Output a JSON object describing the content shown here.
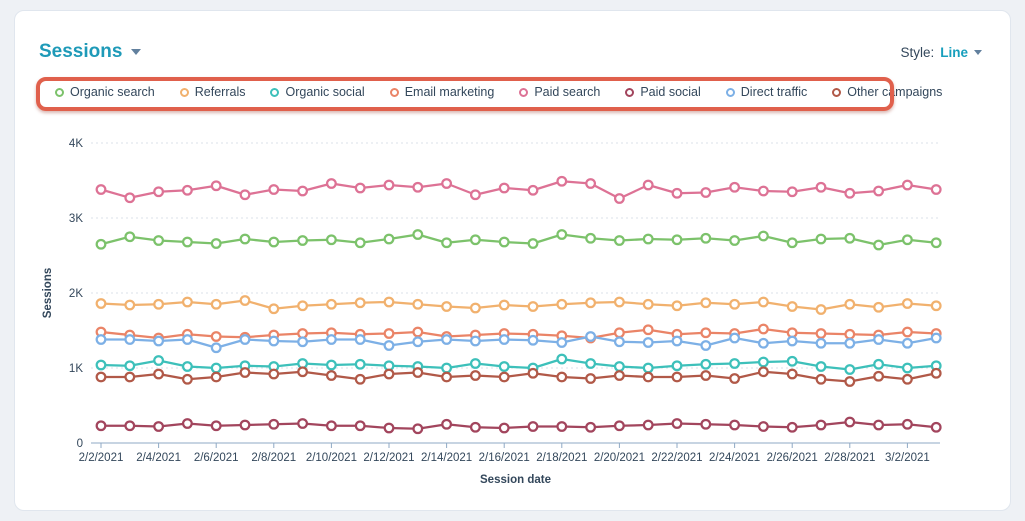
{
  "header": {
    "title": "Sessions",
    "style_label": "Style:",
    "style_value": "Line"
  },
  "annotation": {
    "shape": "rounded-rect-highlight",
    "color": "#e0604c"
  },
  "colors": {
    "title_teal": "#1e9ab8",
    "link_teal": "#189fbd",
    "text_slate": "#33475b",
    "axis_line": "#8fa9c4",
    "gridline": "#dbe1e8"
  },
  "legend": {
    "items": [
      {
        "id": "organic-search",
        "label": "Organic search",
        "color": "#7cc26b"
      },
      {
        "id": "referrals",
        "label": "Referrals",
        "color": "#f1b16e"
      },
      {
        "id": "organic-social",
        "label": "Organic social",
        "color": "#3dc0ba"
      },
      {
        "id": "email-marketing",
        "label": "Email marketing",
        "color": "#ea8467"
      },
      {
        "id": "paid-search",
        "label": "Paid search",
        "color": "#dd7295"
      },
      {
        "id": "paid-social",
        "label": "Paid social",
        "color": "#a2455d"
      },
      {
        "id": "direct-traffic",
        "label": "Direct traffic",
        "color": "#7db0e6"
      },
      {
        "id": "other-campaigns",
        "label": "Other campaigns",
        "color": "#b15948"
      }
    ]
  },
  "chart_data": {
    "type": "line",
    "title": "Sessions",
    "xlabel": "Session date",
    "ylabel": "Sessions",
    "ylim": [
      0,
      4000
    ],
    "yticks": {
      "values": [
        0,
        1000,
        2000,
        3000,
        4000
      ],
      "labels": [
        "0",
        "1K",
        "2K",
        "3K",
        "4K"
      ]
    },
    "grid": "horizontal-dashed",
    "legend_position": "top",
    "x_label_every": 2,
    "categories": [
      "2/2/2021",
      "2/3/2021",
      "2/4/2021",
      "2/5/2021",
      "2/6/2021",
      "2/7/2021",
      "2/8/2021",
      "2/9/2021",
      "2/10/2021",
      "2/11/2021",
      "2/12/2021",
      "2/13/2021",
      "2/14/2021",
      "2/15/2021",
      "2/16/2021",
      "2/17/2021",
      "2/18/2021",
      "2/19/2021",
      "2/20/2021",
      "2/21/2021",
      "2/22/2021",
      "2/23/2021",
      "2/24/2021",
      "2/25/2021",
      "2/26/2021",
      "2/27/2021",
      "2/28/2021",
      "3/1/2021",
      "3/2/2021",
      "3/3/2021"
    ],
    "series": [
      {
        "name": "Organic search",
        "color": "#7cc26b",
        "values": [
          2650,
          2750,
          2700,
          2680,
          2660,
          2720,
          2680,
          2700,
          2710,
          2670,
          2720,
          2780,
          2670,
          2710,
          2680,
          2660,
          2780,
          2730,
          2700,
          2720,
          2710,
          2730,
          2700,
          2760,
          2670,
          2720,
          2730,
          2640,
          2710,
          2670
        ]
      },
      {
        "name": "Referrals",
        "color": "#f1b16e",
        "values": [
          1860,
          1840,
          1850,
          1880,
          1850,
          1900,
          1790,
          1830,
          1850,
          1870,
          1880,
          1850,
          1820,
          1800,
          1840,
          1820,
          1850,
          1870,
          1880,
          1850,
          1830,
          1870,
          1850,
          1880,
          1820,
          1780,
          1850,
          1810,
          1860,
          1830
        ]
      },
      {
        "name": "Organic social",
        "color": "#3dc0ba",
        "values": [
          1040,
          1030,
          1100,
          1020,
          1000,
          1030,
          1020,
          1060,
          1040,
          1050,
          1030,
          1020,
          1000,
          1060,
          1020,
          1000,
          1120,
          1060,
          1020,
          1000,
          1030,
          1050,
          1060,
          1080,
          1090,
          1020,
          980,
          1050,
          1000,
          1030
        ]
      },
      {
        "name": "Email marketing",
        "color": "#ea8467",
        "values": [
          1480,
          1440,
          1400,
          1450,
          1420,
          1410,
          1440,
          1460,
          1470,
          1450,
          1460,
          1480,
          1420,
          1440,
          1460,
          1450,
          1430,
          1400,
          1470,
          1510,
          1450,
          1470,
          1460,
          1520,
          1470,
          1460,
          1450,
          1440,
          1480,
          1460
        ]
      },
      {
        "name": "Paid search",
        "color": "#dd7295",
        "values": [
          3380,
          3270,
          3350,
          3370,
          3430,
          3310,
          3380,
          3360,
          3460,
          3400,
          3440,
          3410,
          3460,
          3310,
          3400,
          3370,
          3490,
          3460,
          3260,
          3440,
          3330,
          3340,
          3410,
          3360,
          3350,
          3410,
          3330,
          3360,
          3440,
          3380
        ]
      },
      {
        "name": "Paid social",
        "color": "#a2455d",
        "values": [
          230,
          230,
          220,
          260,
          230,
          240,
          250,
          260,
          230,
          230,
          200,
          190,
          250,
          210,
          200,
          220,
          220,
          210,
          230,
          240,
          260,
          250,
          240,
          220,
          210,
          240,
          280,
          240,
          250,
          210
        ]
      },
      {
        "name": "Direct traffic",
        "color": "#7db0e6",
        "values": [
          1380,
          1380,
          1360,
          1380,
          1270,
          1380,
          1360,
          1350,
          1380,
          1380,
          1300,
          1350,
          1380,
          1360,
          1380,
          1370,
          1340,
          1420,
          1350,
          1340,
          1360,
          1300,
          1400,
          1330,
          1360,
          1330,
          1330,
          1380,
          1330,
          1400
        ]
      },
      {
        "name": "Other campaigns",
        "color": "#b15948",
        "values": [
          880,
          880,
          920,
          850,
          880,
          940,
          920,
          950,
          900,
          850,
          920,
          940,
          880,
          900,
          880,
          930,
          880,
          860,
          900,
          880,
          880,
          900,
          860,
          950,
          920,
          850,
          820,
          890,
          850,
          930
        ]
      }
    ]
  }
}
